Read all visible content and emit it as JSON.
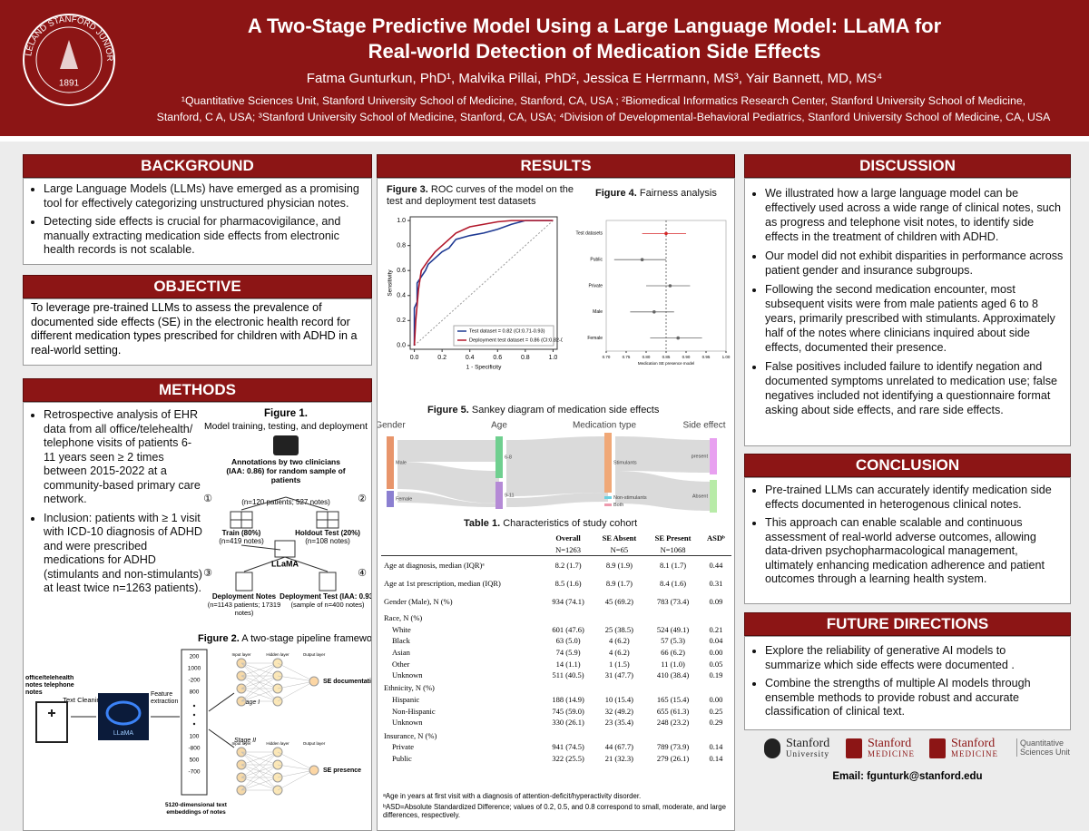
{
  "header": {
    "title_lines": [
      "A Two-Stage Predictive Model Using a Large Language Model: LLaMA for",
      "Real-world Detection of Medication Side Effects"
    ],
    "authors": "Fatma Gunturkun, PhD¹, Malvika Pillai, PhD², Jessica E Herrmann, MS³, Yair Bannett, MD, MS⁴",
    "affiliations": [
      "¹Quantitative Sciences Unit, Stanford University School of Medicine, Stanford,  CA, USA ; ²Biomedical Informatics Research Center, Stanford University School of Medicine,",
      "Stanford, C A, USA; ³Stanford University School of Medicine, Stanford, CA, USA; ⁴Division of Developmental-Behavioral Pediatrics, Stanford University School of Medicine, CA, USA"
    ],
    "seal": {
      "ring": "LELAND STANFORD JUNIOR UNIVERSITY",
      "year": "1891"
    }
  },
  "background": {
    "heading": "BACKGROUND",
    "bullets": [
      "Large Language Models (LLMs) have emerged as a promising tool for effectively categorizing unstructured physician notes.",
      "Detecting side effects is crucial for pharmacovigilance, and manually extracting medication side effects from electronic health records is not scalable."
    ]
  },
  "objective": {
    "heading": "OBJECTIVE",
    "text": "To leverage pre-trained LLMs to assess the prevalence of documented side effects (SE) in the electronic health record for different medication types prescribed for children with ADHD in a real-world setting."
  },
  "methods": {
    "heading": "METHODS",
    "bullets": [
      "Retrospective analysis of EHR data from all office/telehealth/ telephone visits of patients 6-11 years seen ≥ 2 times between 2015-2022 at a community-based primary care network.",
      "Inclusion: patients with ≥ 1 visit with ICD-10 diagnosis of ADHD and were prescribed medications for ADHD (stimulants and non-stimulants) at least twice n=1263 patients)."
    ],
    "figure1": {
      "caption_bold": "Figure 1.",
      "caption": " Model training, testing, and deployment",
      "annotation": "Annotations by two clinicians (IAA: 0.86) for random sample of patients",
      "annotation_n": "(n=120 patients; 527 notes)",
      "train": "Train (80%)",
      "train_n": "(n=419 notes)",
      "holdout": "Holdout Test (20%)",
      "holdout_n": "(n=108 notes)",
      "model": "LLaMA",
      "deploy_notes": "Deployment Notes",
      "deploy_notes_n": "(n=1143 patients; 17319 notes)",
      "deploy_test": "Deployment Test (IAA: 0.93)",
      "deploy_test_n": "(sample of n=400 notes)",
      "steps": [
        "①",
        "②",
        "③",
        "④"
      ]
    },
    "figure2": {
      "caption_bold": "Figure 2.",
      "caption": " A two-stage pipeline framework",
      "input": "office/telehealth notes telephone notes",
      "cleaning": "Text Cleaning",
      "logo": "LLaMA",
      "extraction": "Feature extraction",
      "vector": [
        "200",
        "1000",
        "-200",
        "800",
        "100",
        "-800",
        "500",
        "-700"
      ],
      "stage1": "Stage I",
      "stage2": "Stage II",
      "layers": [
        "Input layer",
        "Hidden layer",
        "Output layer"
      ],
      "out1": "SE documentation",
      "out2": "SE presence",
      "embedding": "5120-dimensional text embeddings of notes"
    }
  },
  "results": {
    "heading": "RESULTS",
    "figure3": {
      "caption_bold": "Figure 3.",
      "caption": " ROC curves of the model on the test and deployment test datasets"
    },
    "figure4": {
      "caption_bold": "Figure 4.",
      "caption": " Fairness analysis"
    },
    "figure5": {
      "caption_bold": "Figure 5.",
      "caption": " Sankey diagram of medication side effects",
      "columns": [
        "Gender",
        "Age",
        "Medication type",
        "Side effect"
      ],
      "nodes": [
        "Male",
        "Female",
        "6-8",
        "9-11",
        "Stimulants",
        "Non-stimulants",
        "Both",
        "present",
        "Absent"
      ]
    },
    "table": {
      "caption_bold": "Table 1.",
      "caption": " Characteristics of study cohort",
      "header": [
        "",
        "Overall",
        "SE Absent",
        "SE Present",
        "ASDᵇ"
      ],
      "subheader": [
        "",
        "N=1263",
        "N=65",
        "N=1068",
        ""
      ],
      "rows": [
        [
          "Age at diagnosis, median (IQR)ᵃ",
          "8.2 (1.7)",
          "8.9 (1.9)",
          "8.1 (1.7)",
          "0.44"
        ],
        [
          "Age at 1st prescription, median (IQR)",
          "8.5 (1.6)",
          "8.9 (1.7)",
          "8.4 (1.6)",
          "0.31"
        ],
        [
          "Gender (Male), N (%)",
          "934 (74.1)",
          "45 (69.2)",
          "783 (73.4)",
          "0.09"
        ],
        [
          "Race, N (%)"
        ],
        [
          "White",
          "601 (47.6)",
          "25 (38.5)",
          "524 (49.1)",
          "0.21"
        ],
        [
          "Black",
          "63 (5.0)",
          "4 (6.2)",
          "57 (5.3)",
          "0.04"
        ],
        [
          "Asian",
          "74 (5.9)",
          "4 (6.2)",
          "66 (6.2)",
          "0.00"
        ],
        [
          "Other",
          "14 (1.1)",
          "1 (1.5)",
          "11 (1.0)",
          "0.05"
        ],
        [
          "Unknown",
          "511 (40.5)",
          "31 (47.7)",
          "410 (38.4)",
          "0.19"
        ],
        [
          "Ethnicity, N (%)"
        ],
        [
          "Hispanic",
          "188 (14.9)",
          "10 (15.4)",
          "165 (15.4)",
          "0.00"
        ],
        [
          "Non-Hispanic",
          "745 (59.0)",
          "32 (49.2)",
          "655 (61.3)",
          "0.25"
        ],
        [
          "Unknown",
          "330 (26.1)",
          "23 (35.4)",
          "248 (23.2)",
          "0.29"
        ],
        [
          "Insurance, N (%)"
        ],
        [
          "Private",
          "941 (74.5)",
          "44 (67.7)",
          "789 (73.9)",
          "0.14"
        ],
        [
          "Public",
          "322 (25.5)",
          "21 (32.3)",
          "279 (26.1)",
          "0.14"
        ]
      ],
      "footnotes": [
        "ᵃAge in years at first visit with a diagnosis of attention-deficit/hyperactivity disorder.",
        "ᵇASD=Absolute Standardized Difference; values of 0.2, 0.5, and 0.8 correspond to small, moderate, and large differences, respectively."
      ]
    }
  },
  "discussion": {
    "heading": "DISCUSSION",
    "bullets": [
      "We illustrated how a large language model can be effectively used across a wide range of clinical notes, such as progress and telephone visit notes, to identify side effects in the treatment of children with ADHD.",
      "Our model did not exhibit disparities in performance across patient gender and insurance subgroups.",
      "Following the second medication encounter, most subsequent visits were from male patients aged 6 to 8 years, primarily prescribed with stimulants. Approximately half of the notes where clinicians inquired about side effects, documented their presence.",
      "False positives included failure to identify negation and documented symptoms unrelated to medication use; false negatives included not identifying a questionnaire format asking about side effects, and rare side effects."
    ]
  },
  "conclusion": {
    "heading": "CONCLUSION",
    "bullets": [
      "Pre-trained LLMs can accurately identify medication side effects documented in heterogenous clinical notes.",
      "This approach can enable scalable and continuous assessment of real-world adverse outcomes, allowing data-driven psychopharmacological management, ultimately enhancing medication adherence and patient outcomes through a learning health system."
    ]
  },
  "future": {
    "heading": "FUTURE DIRECTIONS",
    "bullets": [
      "Explore the reliability of generative AI models to summarize which side effects were documented .",
      "Combine the strengths of multiple AI models through ensemble methods to provide robust and accurate classification of clinical text."
    ]
  },
  "logos": [
    {
      "line1": "Stanford",
      "line2": "University"
    },
    {
      "line1": "Stanford",
      "line2": "MEDICINE"
    },
    {
      "line1": "Stanford",
      "line2": "MEDICINE",
      "unit": "Quantitative Sciences Unit"
    }
  ],
  "email": "Email: fgunturk@stanford.edu",
  "chart_data": [
    {
      "type": "line",
      "xlabel": "1 - Specificity",
      "ylabel": "Sensitivity",
      "xlim": [
        -0.03,
        1.03
      ],
      "ylim": [
        -0.03,
        1.03
      ],
      "xticks": [
        {
          "value": 0,
          "label": "0.0"
        },
        0.2,
        0.4,
        0.6,
        0.8,
        {
          "value": 1,
          "label": "1.0"
        }
      ],
      "yticks": [
        {
          "value": 0,
          "label": "0.0"
        },
        0.2,
        0.4,
        0.6,
        0.8,
        {
          "value": 1,
          "label": "1.0"
        }
      ],
      "legend": "lower right",
      "series": [
        {
          "name": "Test dataset = 0.82 (CI:0.71-0.93)",
          "color": "#1f3a93",
          "x": [
            0,
            0,
            0.02,
            0.02,
            0.05,
            0.08,
            0.1,
            0.15,
            0.2,
            0.25,
            0.3,
            0.4,
            0.5,
            0.6,
            0.7,
            0.8,
            1
          ],
          "values": [
            0,
            0.3,
            0.35,
            0.5,
            0.55,
            0.6,
            0.65,
            0.7,
            0.75,
            0.78,
            0.85,
            0.88,
            0.9,
            0.93,
            0.97,
            1,
            1
          ]
        },
        {
          "name": "Deployment test dataset = 0.86 (CI:0.82-0.90)",
          "color": "#b2182b",
          "x": [
            0,
            0.01,
            0.03,
            0.05,
            0.1,
            0.15,
            0.2,
            0.3,
            0.4,
            0.5,
            0.6,
            0.7,
            1
          ],
          "values": [
            0,
            0.2,
            0.45,
            0.6,
            0.68,
            0.75,
            0.8,
            0.9,
            0.95,
            0.97,
            0.99,
            1,
            1
          ]
        }
      ]
    },
    {
      "type": "forest",
      "xlabel": "Medication SE presence model",
      "categories": [
        "Test datasets",
        "Public",
        "Private",
        "Male",
        "Female"
      ],
      "values": [
        0.85,
        0.79,
        0.86,
        0.82,
        0.88
      ],
      "low": [
        0.79,
        0.72,
        0.8,
        0.76,
        0.81
      ],
      "high": [
        0.9,
        0.85,
        0.91,
        0.87,
        0.94
      ],
      "colors": [
        "#d62728",
        "#666666",
        "#666666",
        "#666666",
        "#666666"
      ],
      "reference": 0.85,
      "xlim": [
        0.7,
        1
      ],
      "xticks": [
        {
          "value": 0.7,
          "label": "0.70"
        },
        0.75,
        {
          "value": 0.8,
          "label": "0.80"
        },
        0.85,
        {
          "value": 0.9,
          "label": "0.90"
        },
        0.95,
        {
          "value": 1,
          "label": "1.00"
        }
      ]
    }
  ]
}
